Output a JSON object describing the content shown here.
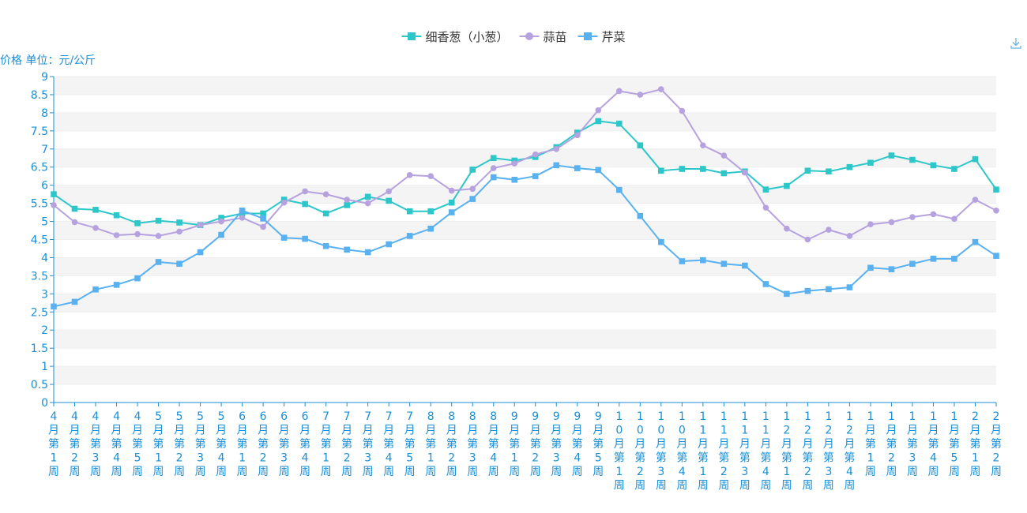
{
  "chart_data": {
    "type": "line",
    "ylabel": "价格 单位：元/公斤",
    "ylim": [
      0,
      9
    ],
    "yticks": [
      "0",
      "0.5",
      "1",
      "1.5",
      "2",
      "2.5",
      "3",
      "3.5",
      "4",
      "4.5",
      "5",
      "5.5",
      "6",
      "6.5",
      "7",
      "7.5",
      "8",
      "8.5",
      "9"
    ],
    "grid": true,
    "legend_position": "top-center",
    "categories": [
      "4月第1周",
      "4月第2周",
      "4月第3周",
      "4月第4周",
      "4月第5周",
      "5月第1周",
      "5月第2周",
      "5月第3周",
      "5月第4周",
      "6月第1周",
      "6月第2周",
      "6月第3周",
      "6月第4周",
      "7月第1周",
      "7月第2周",
      "7月第3周",
      "7月第4周",
      "7月第5周",
      "8月第1周",
      "8月第2周",
      "8月第3周",
      "8月第4周",
      "9月第1周",
      "9月第2周",
      "9月第3周",
      "9月第4周",
      "9月第5周",
      "10月第1周",
      "10月第2周",
      "10月第3周",
      "10月第4周",
      "11月第1周",
      "11月第2周",
      "11月第3周",
      "11月第4周",
      "12月第1周",
      "12月第2周",
      "12月第3周",
      "12月第4周",
      "1月第1周",
      "1月第2周",
      "1月第3周",
      "1月第4周",
      "1月第5周",
      "2月第1周",
      "2月第2周"
    ],
    "series": [
      {
        "name": "细香葱（小葱）",
        "color": "#2ec7c9",
        "marker": "square",
        "values": [
          5.75,
          5.35,
          5.32,
          5.17,
          4.95,
          5.02,
          4.97,
          4.9,
          5.1,
          5.22,
          5.22,
          5.6,
          5.48,
          5.22,
          5.45,
          5.68,
          5.57,
          5.28,
          5.28,
          5.52,
          6.43,
          6.75,
          6.68,
          6.78,
          7.05,
          7.45,
          7.77,
          7.7,
          7.1,
          6.4,
          6.45,
          6.45,
          6.33,
          6.38,
          5.88,
          5.98,
          6.4,
          6.38,
          6.5,
          6.62,
          6.82,
          6.7,
          6.55,
          6.45,
          6.72,
          5.88
        ]
      },
      {
        "name": "蒜苗",
        "color": "#b6a2de",
        "marker": "circle",
        "values": [
          5.45,
          4.98,
          4.82,
          4.62,
          4.65,
          4.6,
          4.72,
          4.9,
          5.0,
          5.1,
          4.85,
          5.52,
          5.83,
          5.75,
          5.6,
          5.5,
          5.83,
          6.28,
          6.25,
          5.85,
          5.9,
          6.47,
          6.6,
          6.85,
          7.0,
          7.38,
          8.07,
          8.6,
          8.5,
          8.65,
          8.05,
          7.1,
          6.82,
          6.35,
          5.38,
          4.8,
          4.5,
          4.77,
          4.6,
          4.92,
          4.98,
          5.12,
          5.2,
          5.07,
          5.6,
          5.3
        ]
      },
      {
        "name": "芹菜",
        "color": "#5ab1ef",
        "marker": "square",
        "values": [
          2.65,
          2.78,
          3.12,
          3.25,
          3.43,
          3.88,
          3.83,
          4.15,
          4.63,
          5.3,
          5.08,
          4.55,
          4.52,
          4.32,
          4.22,
          4.15,
          4.37,
          4.6,
          4.8,
          5.25,
          5.62,
          6.22,
          6.15,
          6.25,
          6.55,
          6.47,
          6.42,
          5.87,
          5.15,
          4.43,
          3.9,
          3.93,
          3.83,
          3.78,
          3.27,
          3.0,
          3.08,
          3.13,
          3.18,
          3.72,
          3.68,
          3.83,
          3.97,
          3.97,
          4.43,
          4.05
        ]
      }
    ]
  }
}
